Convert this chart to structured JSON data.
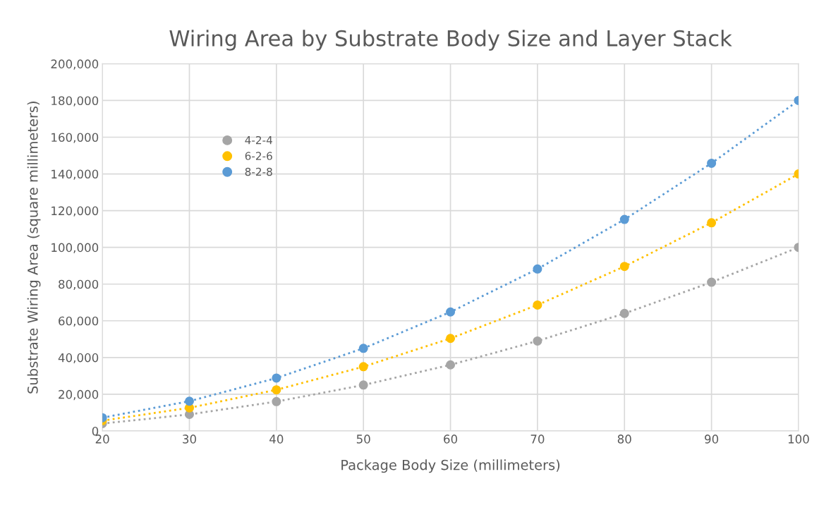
{
  "chart_data": {
    "type": "line",
    "title": "Wiring Area by Substrate Body Size and Layer Stack",
    "xlabel": "Package Body Size (millimeters)",
    "ylabel": "Substrate Wiring Area (square millimeters)",
    "x": [
      20,
      30,
      40,
      50,
      60,
      70,
      80,
      90,
      100
    ],
    "series": [
      {
        "name": "4-2-4",
        "color": "#a5a5a5",
        "values": [
          4000,
          9000,
          16000,
          25000,
          36000,
          49000,
          64000,
          81000,
          100000
        ]
      },
      {
        "name": "6-2-6",
        "color": "#ffc000",
        "values": [
          5600,
          12600,
          22400,
          35000,
          50400,
          68600,
          89600,
          113400,
          140000
        ]
      },
      {
        "name": "8-2-8",
        "color": "#5b9bd5",
        "values": [
          7200,
          16200,
          28800,
          45000,
          64800,
          88200,
          115200,
          145800,
          180000
        ]
      }
    ],
    "xlim": [
      20,
      100
    ],
    "xticks": [
      20,
      30,
      40,
      50,
      60,
      70,
      80,
      90,
      100
    ],
    "ylim": [
      0,
      200000
    ],
    "yticks": [
      0,
      {
        "value": 20000,
        "label": "20,000"
      },
      {
        "value": 40000,
        "label": "40,000"
      },
      {
        "value": 60000,
        "label": "60,000"
      },
      {
        "value": 80000,
        "label": "80,000"
      },
      {
        "value": 100000,
        "label": "100,000"
      },
      {
        "value": 120000,
        "label": "120,000"
      },
      {
        "value": 140000,
        "label": "140,000"
      },
      {
        "value": 160000,
        "label": "160,000"
      },
      {
        "value": 180000,
        "label": "180,000"
      },
      {
        "value": 200000,
        "label": "200,000"
      }
    ],
    "grid": true,
    "legend": "top left",
    "marker": "circle",
    "line_style": "dotted"
  }
}
